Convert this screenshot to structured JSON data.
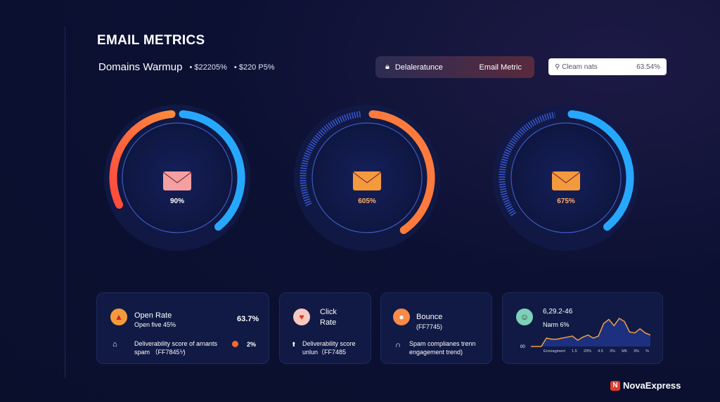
{
  "header": {
    "title": "EMAIL METRICS",
    "subtitle": "Domains Warmup",
    "meta1": "$22205%",
    "meta2": "$220 P5%"
  },
  "pill": {
    "left": "Delaleratunce",
    "right": "Email Metric"
  },
  "search": {
    "placeholder": "Cleam nats",
    "value": "63.54%"
  },
  "gauges": [
    {
      "label": "90%",
      "icon": "envelope-icon"
    },
    {
      "label": "605%",
      "icon": "envelope-icon"
    },
    {
      "label": "675%",
      "icon": "envelope-icon"
    }
  ],
  "cards": {
    "open": {
      "title": "Open Rate",
      "sub": "Open five 45%",
      "value": "63.7%",
      "line1": "Deliverability score of arnants",
      "line2": "spam （FF7845⅟)",
      "value2": "2%"
    },
    "click": {
      "title1": "Click",
      "title2": "Rate",
      "line1": "Deliverability score",
      "line2": "unlun（FF7485"
    },
    "bounce": {
      "title": "Bounce",
      "sub": "(FF7745)",
      "line1": "Spam complianes trenn",
      "line2": "engagement trend)"
    },
    "trend": {
      "title": "6,29.2-46",
      "sub": "Narm 6%",
      "y0": "00",
      "xlabels": [
        "Enveagment",
        "1.5",
        "20%",
        "4.5",
        "3%",
        "M6",
        "3%",
        "%"
      ]
    }
  },
  "chart_data": {
    "type": "area",
    "values": [
      0,
      0,
      0,
      8,
      7,
      7,
      8,
      9,
      10,
      6,
      9,
      11,
      8,
      10,
      22,
      26,
      20,
      27,
      24,
      14,
      13,
      17,
      13,
      11
    ]
  },
  "brand": {
    "name": "NovaExpress"
  },
  "colors": {
    "orange": "#ff7a3d",
    "blue": "#27a8ff",
    "bg": "#0a0f2c"
  }
}
